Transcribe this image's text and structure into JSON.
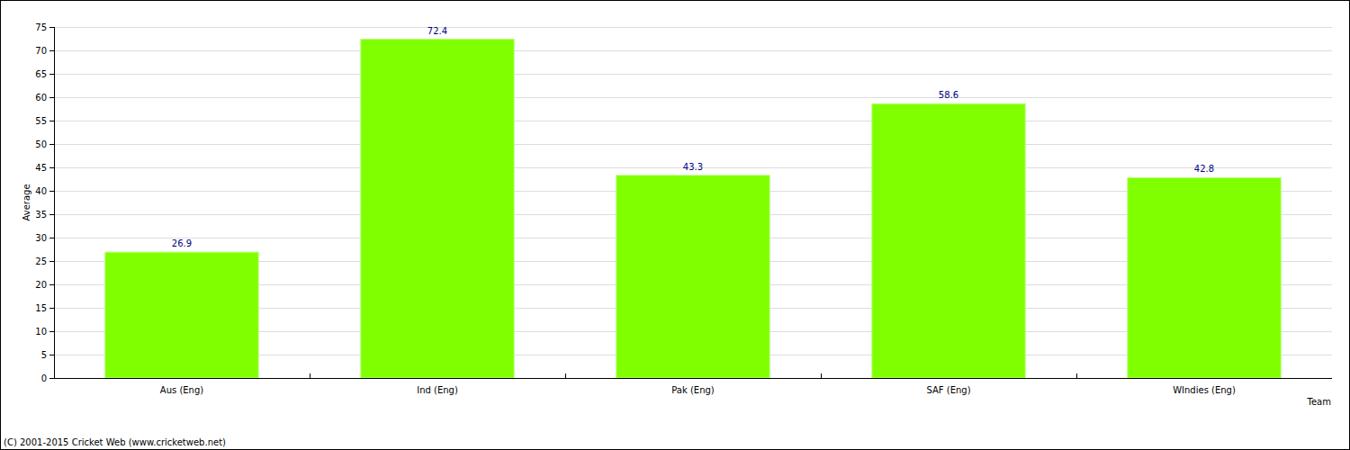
{
  "chart_data": {
    "type": "bar",
    "x_label": "Team",
    "y_label": "Average",
    "categories": [
      "Aus (Eng)",
      "Ind (Eng)",
      "Pak (Eng)",
      "SAF (Eng)",
      "WIndies (Eng)"
    ],
    "values": [
      26.9,
      72.4,
      43.3,
      58.6,
      42.8
    ],
    "color": "#80ff00",
    "ylim": [
      0,
      75
    ],
    "yticks": [
      0,
      5,
      10,
      15,
      20,
      25,
      30,
      35,
      40,
      45,
      50,
      55,
      60,
      65,
      70,
      75
    ],
    "grid": true,
    "data_labels": true,
    "annotations": [
      "(C) 2001-2015 Cricket Web (www.cricketweb.net)"
    ]
  }
}
